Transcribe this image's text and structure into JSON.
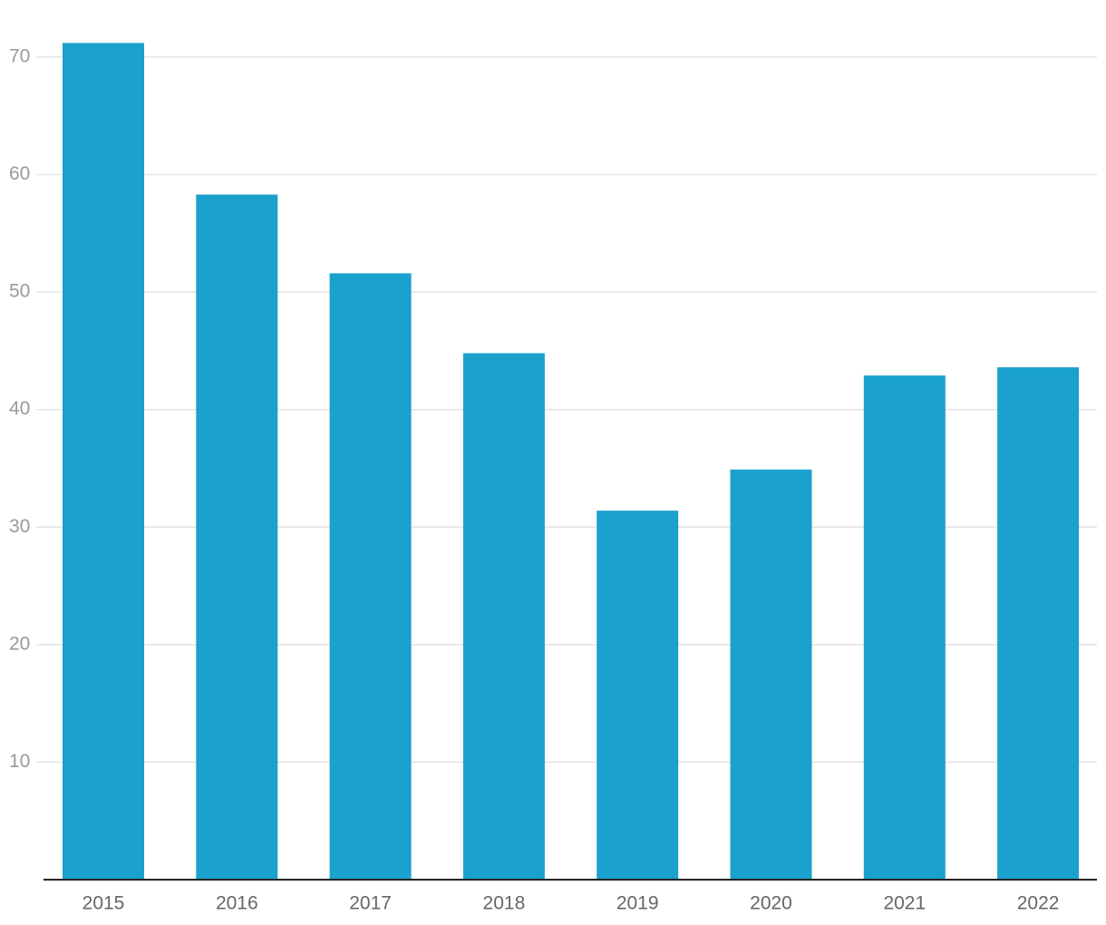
{
  "chart_data": {
    "type": "bar",
    "categories": [
      "2015",
      "2016",
      "2017",
      "2018",
      "2019",
      "2020",
      "2021",
      "2022"
    ],
    "values": [
      71.2,
      58.3,
      51.6,
      44.8,
      31.4,
      34.9,
      42.9,
      43.6
    ],
    "color": "#1aa1cd",
    "ylim": [
      0,
      72
    ],
    "yticks": [
      10,
      20,
      30,
      40,
      50,
      60,
      70
    ],
    "grid": true
  }
}
